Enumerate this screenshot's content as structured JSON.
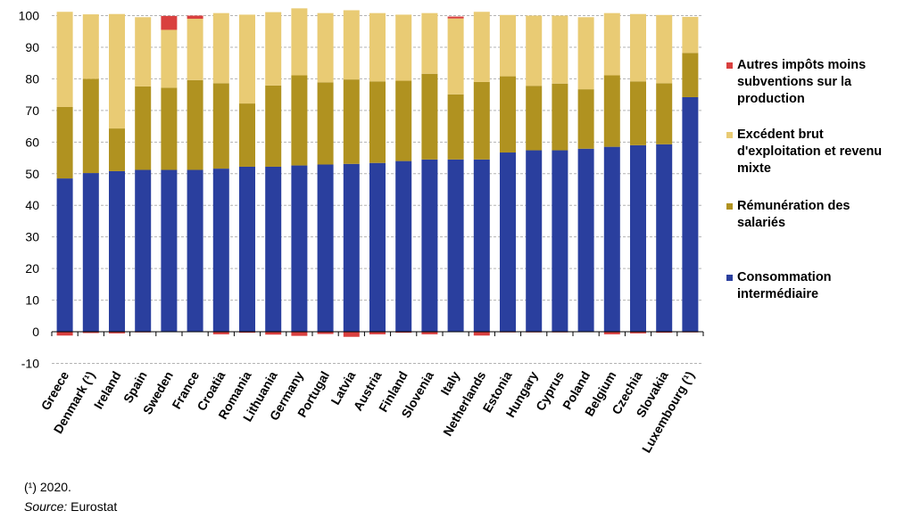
{
  "chart_data": {
    "type": "bar",
    "stacked": true,
    "categories": [
      "Greece",
      "Denmark (¹)",
      "Ireland",
      "Spain",
      "Sweden",
      "France",
      "Croatia",
      "Romania",
      "Lithuania",
      "Germany",
      "Portugal",
      "Latvia",
      "Austria",
      "Finland",
      "Slovenia",
      "Italy",
      "Netherlands",
      "Estonia",
      "Hungary",
      "Cyprus",
      "Poland",
      "Belgium",
      "Czechia",
      "Slovakia",
      "Luxembourg (¹)"
    ],
    "series": [
      {
        "name": "Consommation intermédiaire",
        "color": "#2a3f9e",
        "values": [
          48.5,
          50.2,
          50.8,
          51.2,
          51.2,
          51.2,
          51.6,
          52.2,
          52.2,
          52.6,
          52.9,
          53.1,
          53.4,
          54.0,
          54.5,
          54.5,
          54.5,
          56.7,
          57.4,
          57.4,
          57.9,
          58.5,
          59.0,
          59.3,
          74.2
        ]
      },
      {
        "name": "Rémunération des salariés",
        "color": "#b09220",
        "values": [
          22.6,
          29.8,
          13.5,
          26.4,
          26.0,
          28.4,
          27.0,
          20.0,
          25.7,
          28.5,
          26.0,
          26.7,
          25.8,
          25.4,
          27.1,
          20.6,
          24.5,
          24.1,
          20.4,
          21.1,
          18.8,
          22.6,
          20.2,
          19.3,
          14.0
        ]
      },
      {
        "name": "Excédent brut d'exploitation et revenu mixte",
        "color": "#e9cb74",
        "values": [
          30.1,
          20.4,
          36.2,
          21.9,
          18.3,
          19.4,
          22.2,
          28.1,
          23.2,
          21.2,
          21.9,
          21.9,
          21.6,
          20.9,
          19.2,
          24.0,
          22.2,
          19.4,
          22.2,
          21.5,
          22.8,
          19.7,
          21.3,
          21.6,
          11.4
        ]
      },
      {
        "name": "Autres impôts moins subventions sur la production",
        "color": "#d9403f",
        "values": [
          -1.2,
          -0.4,
          -0.5,
          -0.2,
          4.4,
          1.0,
          -0.8,
          -0.3,
          -0.9,
          -1.3,
          -0.7,
          -1.6,
          -0.8,
          -0.3,
          -0.8,
          0.6,
          -1.2,
          -0.2,
          -0.2,
          -0.2,
          -0.1,
          -0.8,
          -0.5,
          -0.3,
          -0.2
        ]
      }
    ],
    "ylim": [
      -10,
      100
    ],
    "yticks": [
      -10,
      0,
      10,
      20,
      30,
      40,
      50,
      60,
      70,
      80,
      90,
      100
    ],
    "grid": "horizontal dashed",
    "legend_position": "right"
  },
  "legend": [
    {
      "label": "Autres impôts moins\nsubventions sur la\nproduction",
      "color": "#d9403f"
    },
    {
      "label": "Excédent brut\nd'exploitation et revenu\nmixte",
      "color": "#e9cb74"
    },
    {
      "label": "Rémunération des\nsalariés",
      "color": "#b09220"
    },
    {
      "label": "Consommation\nintermédiaire",
      "color": "#2a3f9e"
    }
  ],
  "footnote": "(¹) 2020.",
  "source": {
    "label": "Source:",
    "value": " Eurostat"
  }
}
